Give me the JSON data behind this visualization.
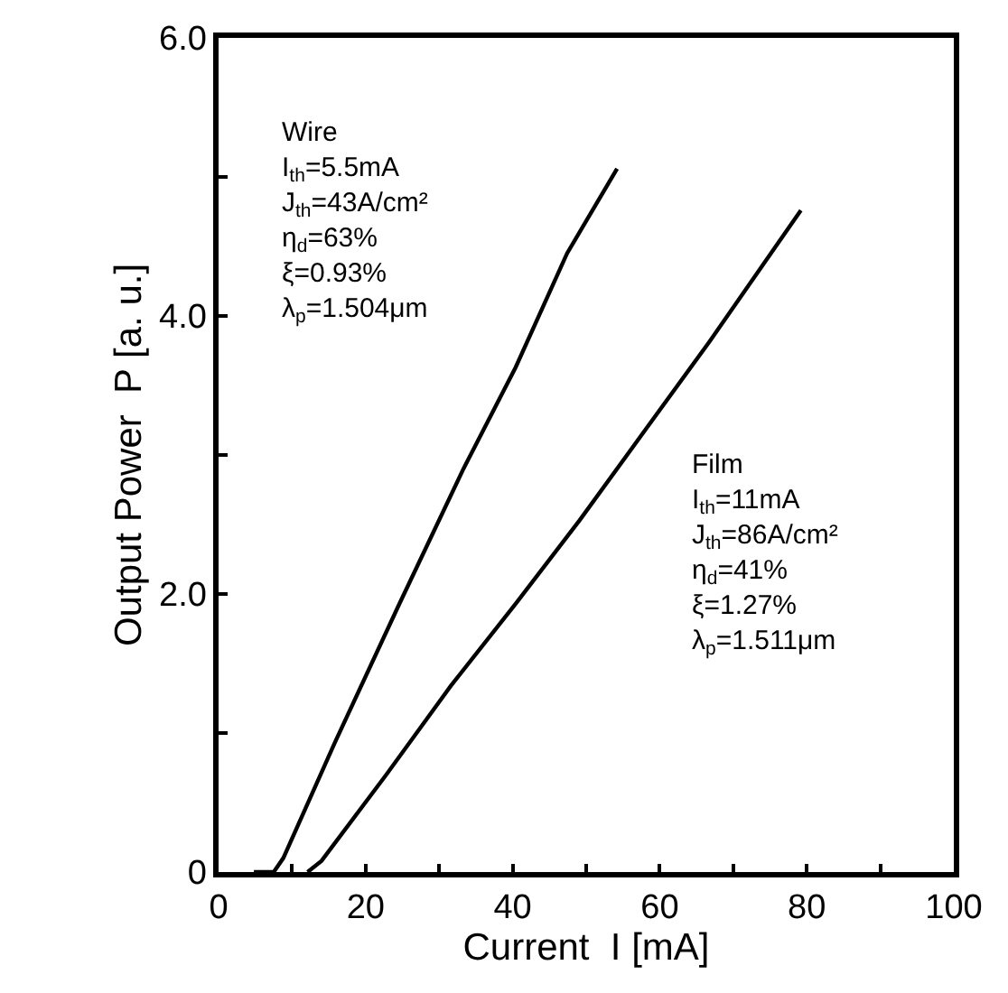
{
  "chart_data": {
    "type": "line",
    "xlabel": "Current  I [mA]",
    "ylabel": "Output Power  P [a. u.]",
    "xlim": [
      0,
      100
    ],
    "ylim": [
      0,
      6
    ],
    "xticks": [
      0,
      {
        "value": 10,
        "label": null
      },
      20,
      {
        "value": 30,
        "label": null
      },
      40,
      {
        "value": 50,
        "label": null
      },
      60,
      {
        "value": 70,
        "label": null
      },
      80,
      {
        "value": 90,
        "label": null
      },
      100
    ],
    "yticks": [
      0,
      {
        "value": 1,
        "label": null
      },
      {
        "value": 2,
        "label": "2.0"
      },
      {
        "value": 3,
        "label": null
      },
      {
        "value": 4,
        "label": "4.0"
      },
      {
        "value": 5,
        "label": null
      },
      {
        "value": 6,
        "label": "6.0"
      }
    ],
    "series": [
      {
        "color": "#000000",
        "x": [
          4.8,
          7.5,
          8.8,
          15.8,
          24.6,
          33.3,
          40.4,
          47.4,
          54.2
        ],
        "values": [
          0,
          0,
          0.1,
          0.93,
          1.93,
          2.9,
          3.63,
          4.45,
          5.06
        ]
      },
      {
        "color": "#000000",
        "x": [
          12.1,
          14,
          22.8,
          31.6,
          40.4,
          49.1,
          57.9,
          66.7,
          79.2
        ],
        "values": [
          0,
          0.08,
          0.7,
          1.34,
          1.93,
          2.53,
          3.17,
          3.81,
          4.76
        ]
      }
    ],
    "annotations": [
      "Wire\nI$_{th}$=5.5mA\nJ$_{th}$=43A/cm²\nη$_{d}$=63%\nξ=0.93%\nλ$_{p}$=1.504μm",
      "Film\nI$_{th}$=11mA\nJ$_{th}$=86A/cm²\nη$_{d}$=41%\nξ=1.27%\nλ$_{p}$=1.511μm"
    ],
    "marker": "none",
    "line_style": "solid"
  }
}
